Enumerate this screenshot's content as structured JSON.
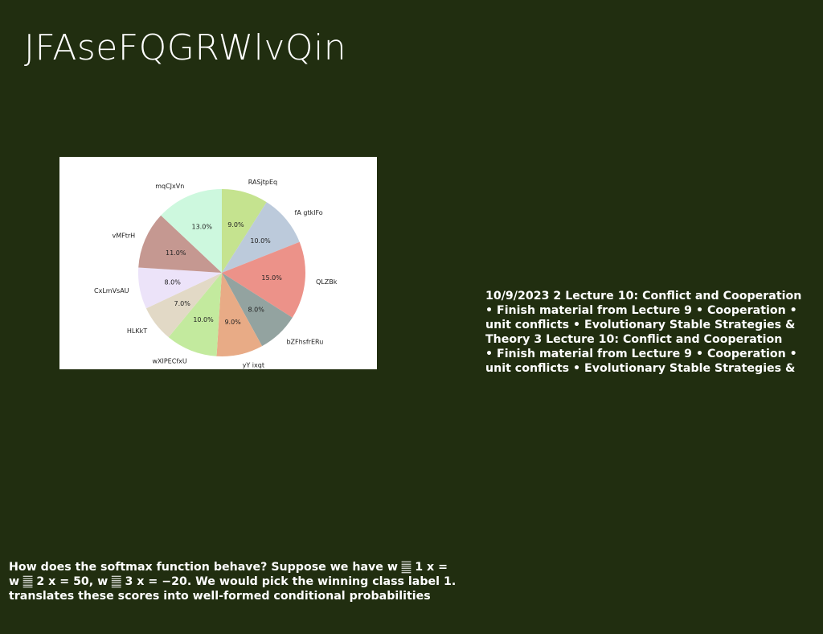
{
  "slide": {
    "title": "JFAseFQGRWlvQin",
    "lecture_lines": [
      "10/9/2023 2 Lecture 10: Conflict and Cooperation",
      "• Finish material from Lecture 9 • Cooperation •",
      "unit conflicts • Evolutionary Stable Strategies &",
      "Theory 3 Lecture 10: Conflict and Cooperation",
      "• Finish material from Lecture 9 • Cooperation •",
      "unit conflicts • Evolutionary Stable Strategies &"
    ],
    "softmax_lines": [
      "How does the softmax function behave? Suppose we have w 𝄛 1 x =",
      "w 𝄛 2 x = 50, w 𝄛 3 x = −20. We would pick the winning class label 1.",
      "translates these scores into well-formed conditional probabilities"
    ]
  },
  "chart_data": {
    "type": "pie",
    "start_angle_deg": 90,
    "direction": "clockwise",
    "slices": [
      {
        "label": "RASjtpEq",
        "value": 9.0,
        "pct_text": "9.0%",
        "color": "#c5e38f"
      },
      {
        "label": "fA gtklFo",
        "value": 10.0,
        "pct_text": "10.0%",
        "color": "#bccadb"
      },
      {
        "label": "QLZBk",
        "value": 15.0,
        "pct_text": "15.0%",
        "color": "#ec9289"
      },
      {
        "label": "bZFhsfrERu",
        "value": 8.0,
        "pct_text": "8.0%",
        "color": "#93a3a0"
      },
      {
        "label": "yY ixqt",
        "value": 9.0,
        "pct_text": "9.0%",
        "color": "#e8ab86"
      },
      {
        "label": "wXIPECfxU",
        "value": 10.0,
        "pct_text": "10.0%",
        "color": "#c3ea9e"
      },
      {
        "label": "HLKkT",
        "value": 7.0,
        "pct_text": "7.0%",
        "color": "#e2d9c6"
      },
      {
        "label": "CxLmVsAU",
        "value": 8.0,
        "pct_text": "8.0%",
        "color": "#ece3f9"
      },
      {
        "label": "vMFtrH",
        "value": 11.0,
        "pct_text": "11.0%",
        "color": "#c59891"
      },
      {
        "label": "mqCJxVn",
        "value": 13.0,
        "pct_text": "13.0%",
        "color": "#cdf8de"
      }
    ]
  }
}
